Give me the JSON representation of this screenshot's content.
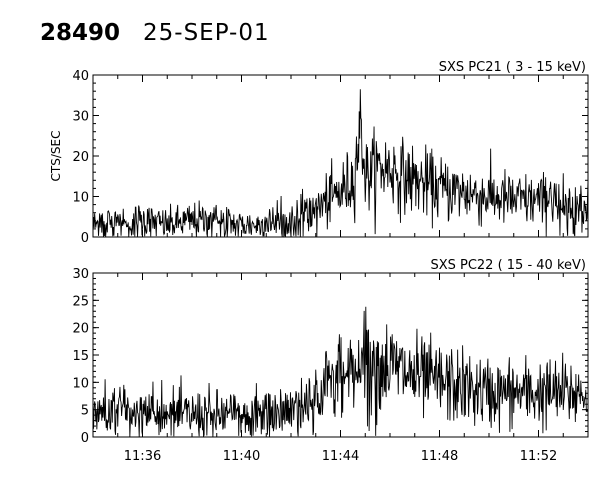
{
  "header": {
    "obs_id": "28490",
    "date": "25-SEP-01"
  },
  "chart_data": [
    {
      "type": "line",
      "title": "SXS PC21  (  3 - 15 keV)",
      "ylabel": "CTS/SEC",
      "xlabel": "",
      "xlim": [
        "11:34",
        "11:54"
      ],
      "ylim": [
        0,
        40
      ],
      "y_ticks": [
        0,
        10,
        20,
        30,
        40
      ],
      "x_ticks": [
        "11:36",
        "11:40",
        "11:44",
        "11:48",
        "11:52"
      ],
      "grid": false,
      "series": [
        {
          "values": [
            {
              "x": "11:34:00",
              "y": 3
            },
            {
              "x": "11:35:00",
              "y": 4
            },
            {
              "x": "11:36:00",
              "y": 4
            },
            {
              "x": "11:37:00",
              "y": 3
            },
            {
              "x": "11:38:00",
              "y": 4
            },
            {
              "x": "11:39:00",
              "y": 4
            },
            {
              "x": "11:40:00",
              "y": 3
            },
            {
              "x": "11:41:00",
              "y": 3
            },
            {
              "x": "11:42:00",
              "y": 4
            },
            {
              "x": "11:42:30",
              "y": 5
            },
            {
              "x": "11:43:00",
              "y": 7
            },
            {
              "x": "11:43:30",
              "y": 9
            },
            {
              "x": "11:44:00",
              "y": 11
            },
            {
              "x": "11:44:30",
              "y": 14
            },
            {
              "x": "11:44:50",
              "y": 28
            },
            {
              "x": "11:45:00",
              "y": 15
            },
            {
              "x": "11:45:30",
              "y": 17
            },
            {
              "x": "11:46:00",
              "y": 17
            },
            {
              "x": "11:46:30",
              "y": 15
            },
            {
              "x": "11:47:00",
              "y": 14
            },
            {
              "x": "11:48:00",
              "y": 12
            },
            {
              "x": "11:49:00",
              "y": 11
            },
            {
              "x": "11:50:00",
              "y": 10
            },
            {
              "x": "11:51:00",
              "y": 9
            },
            {
              "x": "11:52:00",
              "y": 9
            },
            {
              "x": "11:53:00",
              "y": 8
            },
            {
              "x": "11:54:00",
              "y": 8
            }
          ]
        }
      ]
    },
    {
      "type": "line",
      "title": "SXS PC22  ( 15 - 40 keV)",
      "ylabel": "",
      "xlabel": "",
      "xlim": [
        "11:34",
        "11:54"
      ],
      "ylim": [
        0,
        30
      ],
      "y_ticks": [
        0,
        5,
        10,
        15,
        20,
        25,
        30
      ],
      "x_ticks": [
        "11:36",
        "11:40",
        "11:44",
        "11:48",
        "11:52"
      ],
      "grid": false,
      "series": [
        {
          "values": [
            {
              "x": "11:34:00",
              "y": 4
            },
            {
              "x": "11:35:00",
              "y": 5
            },
            {
              "x": "11:36:00",
              "y": 4
            },
            {
              "x": "11:37:00",
              "y": 4
            },
            {
              "x": "11:38:00",
              "y": 4
            },
            {
              "x": "11:39:00",
              "y": 4
            },
            {
              "x": "11:40:00",
              "y": 4
            },
            {
              "x": "11:41:00",
              "y": 4
            },
            {
              "x": "11:42:00",
              "y": 5
            },
            {
              "x": "11:43:00",
              "y": 8
            },
            {
              "x": "11:44:00",
              "y": 11
            },
            {
              "x": "11:44:30",
              "y": 13
            },
            {
              "x": "11:45:00",
              "y": 14
            },
            {
              "x": "11:45:30",
              "y": 13
            },
            {
              "x": "11:46:00",
              "y": 13
            },
            {
              "x": "11:47:00",
              "y": 11
            },
            {
              "x": "11:48:00",
              "y": 10
            },
            {
              "x": "11:49:00",
              "y": 9
            },
            {
              "x": "11:50:00",
              "y": 8
            },
            {
              "x": "11:51:00",
              "y": 8
            },
            {
              "x": "11:52:00",
              "y": 8
            },
            {
              "x": "11:53:00",
              "y": 8
            },
            {
              "x": "11:54:00",
              "y": 8
            }
          ]
        }
      ]
    }
  ]
}
